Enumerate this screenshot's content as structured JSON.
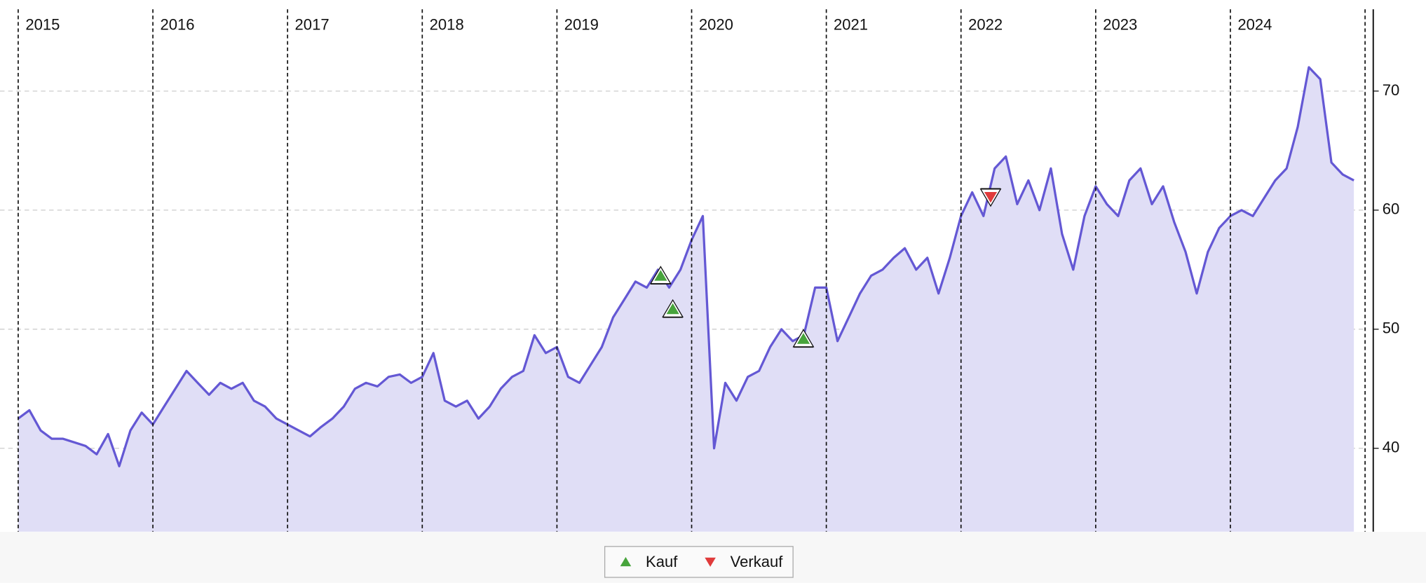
{
  "chart_data": {
    "type": "area",
    "x": [
      2015.0,
      2015.083,
      2015.167,
      2015.25,
      2015.333,
      2015.417,
      2015.5,
      2015.583,
      2015.667,
      2015.75,
      2015.833,
      2015.917,
      2016.0,
      2016.083,
      2016.167,
      2016.25,
      2016.333,
      2016.417,
      2016.5,
      2016.583,
      2016.667,
      2016.75,
      2016.833,
      2016.917,
      2017.0,
      2017.083,
      2017.167,
      2017.25,
      2017.333,
      2017.417,
      2017.5,
      2017.583,
      2017.667,
      2017.75,
      2017.833,
      2017.917,
      2018.0,
      2018.083,
      2018.167,
      2018.25,
      2018.333,
      2018.417,
      2018.5,
      2018.583,
      2018.667,
      2018.75,
      2018.833,
      2018.917,
      2019.0,
      2019.083,
      2019.167,
      2019.25,
      2019.333,
      2019.417,
      2019.5,
      2019.583,
      2019.667,
      2019.75,
      2019.833,
      2019.917,
      2020.0,
      2020.083,
      2020.167,
      2020.25,
      2020.333,
      2020.417,
      2020.5,
      2020.583,
      2020.667,
      2020.75,
      2020.833,
      2020.917,
      2021.0,
      2021.083,
      2021.167,
      2021.25,
      2021.333,
      2021.417,
      2021.5,
      2021.583,
      2021.667,
      2021.75,
      2021.833,
      2021.917,
      2022.0,
      2022.083,
      2022.167,
      2022.25,
      2022.333,
      2022.417,
      2022.5,
      2022.583,
      2022.667,
      2022.75,
      2022.833,
      2022.917,
      2023.0,
      2023.083,
      2023.167,
      2023.25,
      2023.333,
      2023.417,
      2023.5,
      2023.583,
      2023.667,
      2023.75,
      2023.833,
      2023.917,
      2024.0,
      2024.083,
      2024.167,
      2024.25,
      2024.333,
      2024.417,
      2024.5,
      2024.583,
      2024.667,
      2024.75,
      2024.833,
      2024.917
    ],
    "values": [
      42.5,
      43.2,
      41.5,
      40.8,
      40.8,
      40.5,
      40.2,
      39.5,
      41.2,
      38.5,
      41.5,
      43.0,
      42,
      43.5,
      45,
      46.5,
      45.5,
      44.5,
      45.5,
      45,
      45.5,
      44,
      43.5,
      42.5,
      42,
      41.5,
      41,
      41.8,
      42.5,
      43.5,
      45,
      45.5,
      45.2,
      46,
      46.2,
      45.5,
      46,
      48,
      44,
      43.5,
      44,
      42.5,
      43.5,
      45,
      46,
      46.5,
      49.5,
      48,
      48.5,
      46,
      45.5,
      47,
      48.5,
      51,
      52.5,
      54,
      53.5,
      55,
      53.5,
      55,
      57.5,
      59.5,
      40,
      45.5,
      44,
      46,
      46.5,
      48.5,
      50,
      49,
      49.5,
      53.5,
      53.5,
      49,
      51,
      53,
      54.5,
      55,
      56,
      56.8,
      55,
      56,
      53,
      56,
      59.5,
      61.5,
      59.5,
      63.5,
      64.5,
      60.5,
      62.5,
      60,
      63.5,
      58,
      55,
      59.5,
      62,
      60.5,
      59.5,
      62.5,
      63.5,
      60.5,
      62,
      59,
      56.5,
      53,
      56.5,
      58.5,
      59.5,
      60,
      59.5,
      61,
      62.5,
      63.5,
      67,
      72,
      71,
      64,
      63,
      62.5
    ],
    "color": "#6458d4",
    "fill_color": "#e0def6",
    "signals": [
      {
        "name": "Kauf",
        "color": "#47a43c",
        "direction": "up",
        "x": [
          2019.77,
          2019.86,
          2020.83
        ],
        "values": [
          54.5,
          51.7,
          49.2
        ]
      },
      {
        "name": "Verkauf",
        "color": "#e03b3b",
        "direction": "down",
        "x": [
          2022.22
        ],
        "values": [
          61.1
        ]
      }
    ],
    "xlim": [
      2014.95,
      2024.95
    ],
    "xticks": [
      2015,
      2016,
      2017,
      2018,
      2019,
      2020,
      2021,
      2022,
      2023,
      2024
    ],
    "ylim": [
      33,
      77
    ],
    "yticks": [
      40,
      50,
      60,
      70
    ],
    "grid": true
  }
}
